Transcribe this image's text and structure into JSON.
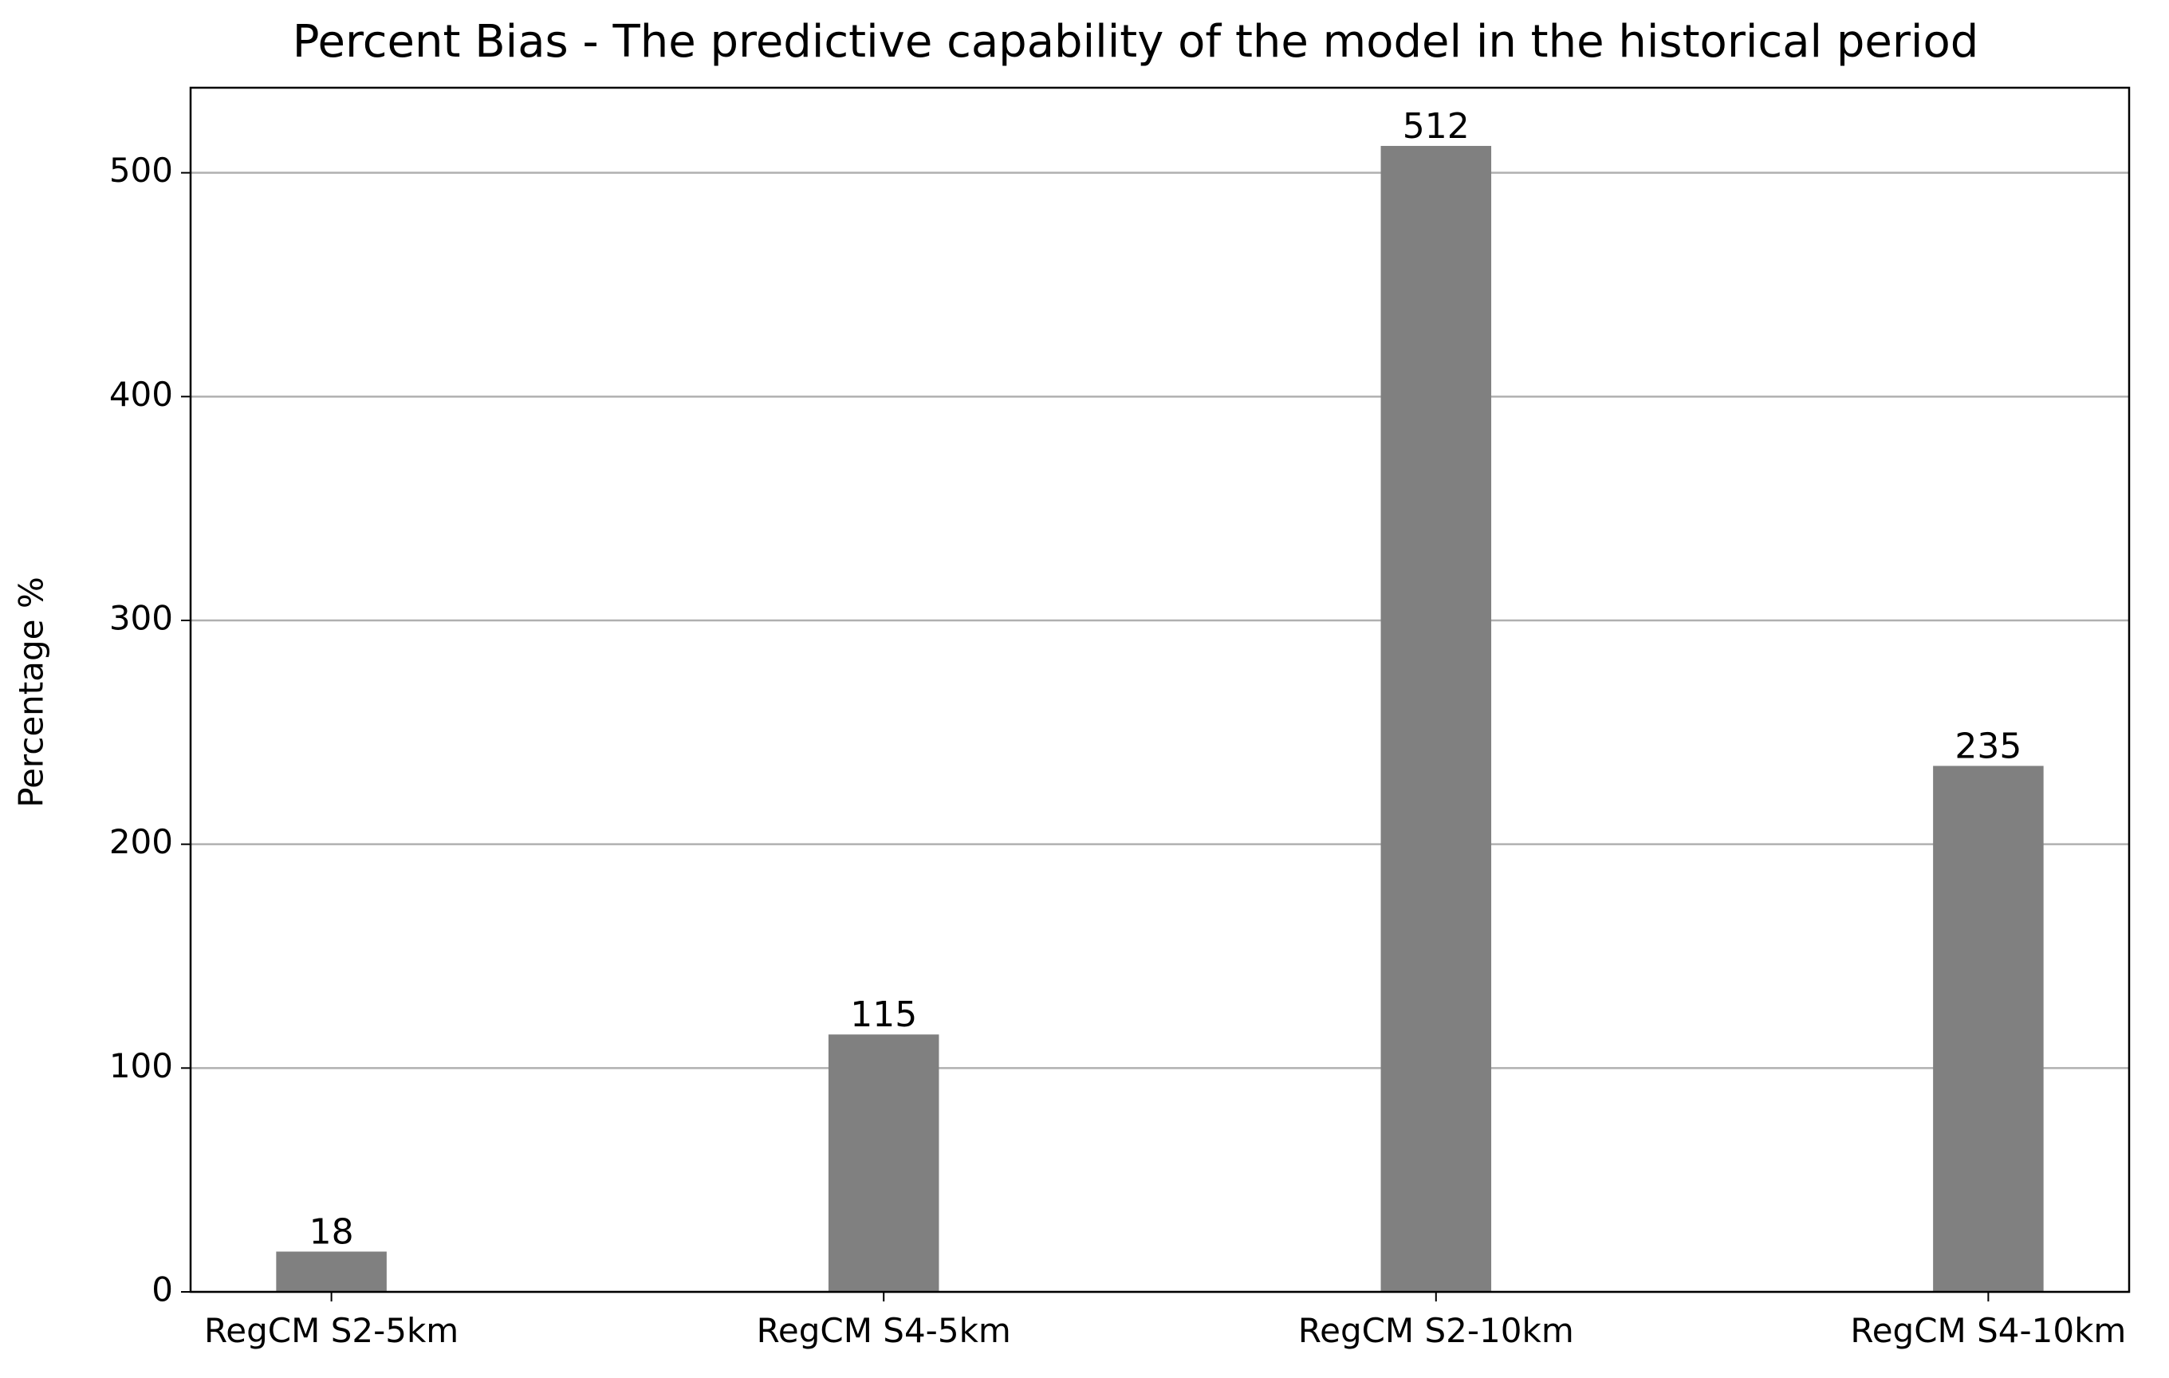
{
  "chart_data": {
    "type": "bar",
    "title": "Percent Bias - The predictive capability of the model in the historical period",
    "y_label": "Percentage %",
    "categories": [
      "RegCM S2-5km",
      "RegCM S4-5km",
      "RegCM S2-10km",
      "RegCM S4-10km"
    ],
    "values": [
      18,
      115,
      512,
      235
    ],
    "color": "#808080",
    "ylim": [
      0,
      538
    ],
    "yticks": [
      0,
      100,
      200,
      300,
      400,
      500
    ],
    "grid": true
  }
}
